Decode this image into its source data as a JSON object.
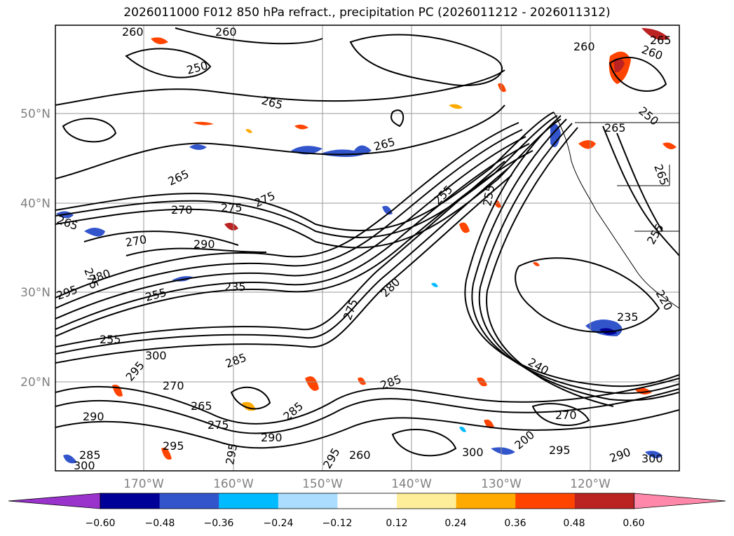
{
  "title": "2026011000 F012 850 hPa refract., precipitation PC (2026011212 - 2026011312)",
  "lat_labels": [
    "50°N",
    "40°N",
    "30°N",
    "20°N"
  ],
  "lon_labels": [
    "170°W",
    "160°W",
    "150°W",
    "140°W",
    "130°W",
    "120°W"
  ],
  "contour_labels": [
    "260",
    "260",
    "250",
    "265",
    "265",
    "265",
    "275",
    "270",
    "275",
    "265",
    "270",
    "290",
    "275",
    "280",
    "295",
    "255",
    "235",
    "255",
    "275",
    "295",
    "300",
    "270",
    "265",
    "285",
    "275",
    "290",
    "295",
    "300",
    "285",
    "290",
    "295",
    "285",
    "285",
    "295",
    "255",
    "280",
    "235",
    "240",
    "255",
    "260",
    "260",
    "265",
    "250",
    "265",
    "265",
    "255",
    "220",
    "270",
    "200",
    "295",
    "300",
    "290",
    "300",
    "260"
  ],
  "colorbar": {
    "ticks": [
      "−0.60",
      "−0.48",
      "−0.36",
      "−0.24",
      "−0.12",
      "0.12",
      "0.24",
      "0.36",
      "0.48",
      "0.60"
    ],
    "colors": [
      "#9933cc",
      "#000099",
      "#3355cc",
      "#00bbff",
      "#aaddff",
      "#ffffff",
      "#ffee99",
      "#ffaa00",
      "#ff4400",
      "#bb2222",
      "#ff88aa"
    ]
  },
  "colors": {
    "contour": "#000000",
    "grid": "#999999",
    "tick_text": "#808080"
  }
}
